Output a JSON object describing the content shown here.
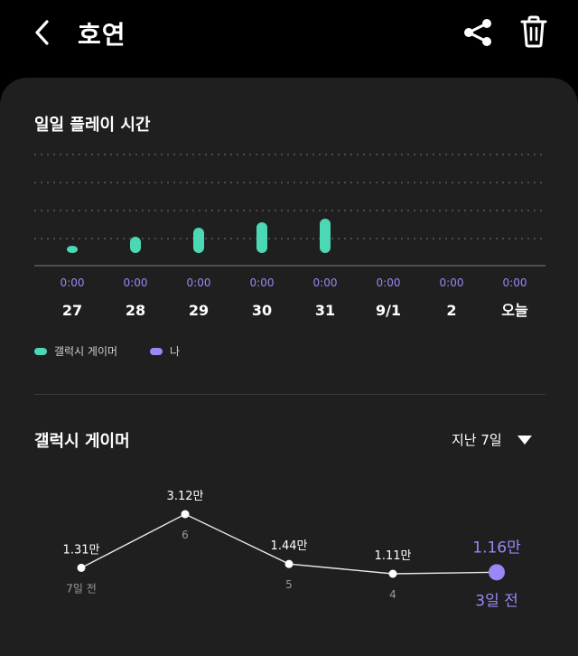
{
  "header": {
    "title": "호연",
    "back_icon": "chevron-left-icon",
    "share_icon": "share-icon",
    "delete_icon": "trash-icon"
  },
  "daily_playtime": {
    "title": "일일 플레이 시간",
    "bar_color": "#4cd8b4",
    "me_color": "#9d86f5",
    "time_color": "#9d86f5",
    "chart_data": {
      "type": "bar",
      "categories": [
        "27",
        "28",
        "29",
        "30",
        "31",
        "9/1",
        "2",
        "오늘"
      ],
      "values": [
        8,
        18,
        28,
        34,
        38,
        0,
        0,
        0
      ],
      "time_labels": [
        "0:00",
        "0:00",
        "0:00",
        "0:00",
        "0:00",
        "0:00",
        "0:00",
        "0:00"
      ],
      "series_names": [
        "갤럭시 게이머",
        "나"
      ],
      "grid": true
    },
    "legend": [
      {
        "label": "갤럭시 게이머",
        "color": "#4cd8b4"
      },
      {
        "label": "나",
        "color": "#9d86f5"
      }
    ]
  },
  "galaxy_gamer": {
    "title": "갤럭시 게이머",
    "period_label": "지난 7일",
    "dropdown_icon": "triangle-down-icon",
    "highlight_color": "#9d86f5",
    "chart_data": {
      "type": "line",
      "x": [
        "7일 전",
        "6",
        "5",
        "4",
        "3일 전"
      ],
      "values": [
        1.31,
        3.12,
        1.44,
        1.11,
        1.16
      ],
      "value_labels": [
        "1.31만",
        "3.12만",
        "1.44만",
        "1.11만",
        "1.16만"
      ],
      "ylim": [
        0,
        3.5
      ]
    }
  }
}
